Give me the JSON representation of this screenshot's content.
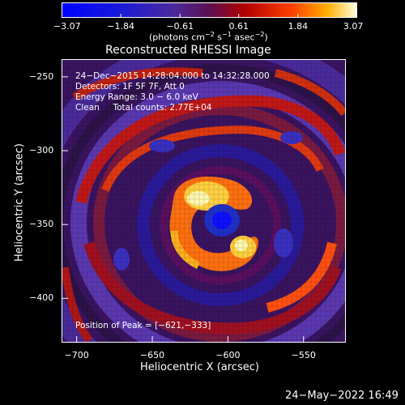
{
  "chart_data": {
    "type": "heatmap",
    "title": "Reconstructed RHESSI Image",
    "xlabel": "Heliocentric X (arcsec)",
    "ylabel": "Heliocentric Y (arcsec)",
    "xlim": [
      -710,
      -522
    ],
    "ylim": [
      -430,
      -238
    ],
    "xticks": [
      -700,
      -650,
      -600,
      -550
    ],
    "xtick_labels": [
      "−700",
      "−650",
      "−600",
      "−550"
    ],
    "yticks": [
      -250,
      -300,
      -350,
      -400
    ],
    "ytick_labels": [
      "−250",
      "−300",
      "−350",
      "−400"
    ],
    "colorbar": {
      "range": [
        -3.07,
        3.07
      ],
      "ticks": [
        -3.07,
        -1.84,
        -0.61,
        0.61,
        1.84,
        3.07
      ],
      "tick_labels": [
        "−3.07",
        "−1.84",
        "−0.61",
        "0.61",
        "1.84",
        "3.07"
      ],
      "units_text": "(photons cm",
      "units_exp1": "−2",
      "units_mid": " s",
      "units_exp2": "−1",
      "units_mid2": " asec",
      "units_exp3": "−2",
      "units_end": ")"
    },
    "annotations": {
      "time_range": "24−Dec−2015 14:28:04.000 to 14:32:28.000",
      "detectors": "Detectors: 1F 5F 7F, Att 0",
      "energy": "Energy Range: 3.0 − 6.0 keV",
      "method": "Clean     Total counts: 2.77E+04",
      "peak": "Position of Peak = [−621,−333]"
    },
    "peak": {
      "x": -621,
      "y": -333
    },
    "grid": false
  },
  "footer": {
    "timestamp": "24−May−2022 16:49"
  }
}
